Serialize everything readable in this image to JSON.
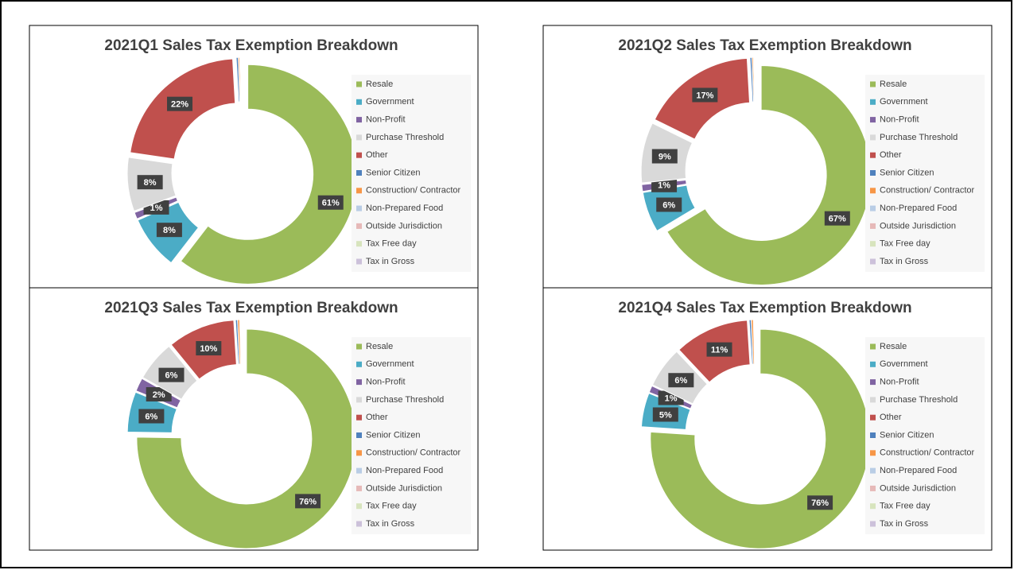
{
  "chart_data": [
    {
      "type": "donut",
      "title": "2021Q1 Sales Tax Exemption Breakdown",
      "categories": [
        "Resale",
        "Government",
        "Non-Profit",
        "Purchase Threshold",
        "Other",
        "Senior Citizen",
        "Construction/ Contractor",
        "Non-Prepared Food",
        "Outside Jurisdiction",
        "Tax Free day",
        "Tax in Gross"
      ],
      "values": [
        61,
        8,
        1,
        8,
        22,
        0.3,
        0.2,
        0.1,
        0.1,
        0.1,
        0.1
      ],
      "value_labels": [
        "61%",
        "8%",
        "1%",
        "8%",
        "22%",
        null,
        null,
        null,
        null,
        null,
        null
      ],
      "colors": [
        "#9bbb59",
        "#4bacc6",
        "#8064a2",
        "#d9d9d9",
        "#c0504d",
        "#4f81bd",
        "#f79646",
        "#b9cde5",
        "#e6b9b8",
        "#d7e4bd",
        "#ccc1da"
      ]
    },
    {
      "type": "donut",
      "title": "2021Q2 Sales Tax Exemption Breakdown",
      "categories": [
        "Resale",
        "Government",
        "Non-Profit",
        "Purchase Threshold",
        "Other",
        "Senior Citizen",
        "Construction/ Contractor",
        "Non-Prepared Food",
        "Outside Jurisdiction",
        "Tax Free day",
        "Tax in Gross"
      ],
      "values": [
        67,
        6,
        1,
        9,
        17,
        0.3,
        0.2,
        0.1,
        0.1,
        0.1,
        0.1
      ],
      "value_labels": [
        "67%",
        "6%",
        "1%",
        "9%",
        "17%",
        null,
        null,
        null,
        null,
        null,
        null
      ],
      "colors": [
        "#9bbb59",
        "#4bacc6",
        "#8064a2",
        "#d9d9d9",
        "#c0504d",
        "#4f81bd",
        "#f79646",
        "#b9cde5",
        "#e6b9b8",
        "#d7e4bd",
        "#ccc1da"
      ]
    },
    {
      "type": "donut",
      "title": "2021Q3 Sales Tax Exemption Breakdown",
      "categories": [
        "Resale",
        "Government",
        "Non-Profit",
        "Purchase Threshold",
        "Other",
        "Senior Citizen",
        "Construction/ Contractor",
        "Non-Prepared Food",
        "Outside Jurisdiction",
        "Tax Free day",
        "Tax in Gross"
      ],
      "values": [
        76,
        6,
        2,
        6,
        10,
        0.3,
        0.3,
        0.1,
        0.1,
        0.1,
        0.1
      ],
      "value_labels": [
        "76%",
        "6%",
        "2%",
        "6%",
        "10%",
        null,
        null,
        null,
        null,
        null,
        null
      ],
      "colors": [
        "#9bbb59",
        "#4bacc6",
        "#8064a2",
        "#d9d9d9",
        "#c0504d",
        "#4f81bd",
        "#f79646",
        "#b9cde5",
        "#e6b9b8",
        "#d7e4bd",
        "#ccc1da"
      ]
    },
    {
      "type": "donut",
      "title": "2021Q4 Sales Tax Exemption Breakdown",
      "categories": [
        "Resale",
        "Government",
        "Non-Profit",
        "Purchase Threshold",
        "Other",
        "Senior Citizen",
        "Construction/ Contractor",
        "Non-Prepared Food",
        "Outside Jurisdiction",
        "Tax Free day",
        "Tax in Gross"
      ],
      "values": [
        76,
        5,
        1,
        6,
        11,
        0.3,
        0.3,
        0.1,
        0.1,
        0.1,
        0.1
      ],
      "value_labels": [
        "76%",
        "5%",
        "1%",
        "6%",
        "11%",
        null,
        null,
        null,
        null,
        null,
        null
      ],
      "colors": [
        "#9bbb59",
        "#4bacc6",
        "#8064a2",
        "#d9d9d9",
        "#c0504d",
        "#4f81bd",
        "#f79646",
        "#b9cde5",
        "#e6b9b8",
        "#d7e4bd",
        "#ccc1da"
      ]
    }
  ]
}
